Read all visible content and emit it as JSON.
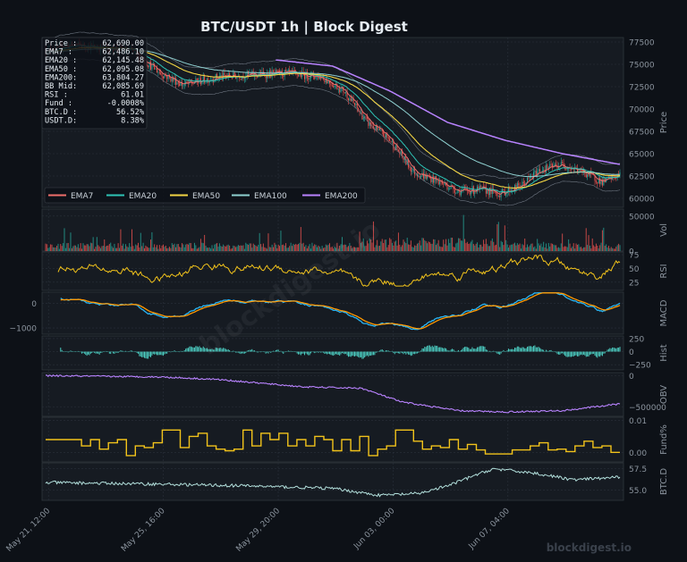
{
  "title": "BTC/USDT  1h  |  Block Digest",
  "watermark": "blockdigest.io",
  "diag_watermark": "blockdigest.io",
  "colors": {
    "bg": "#0d1117",
    "panel": "#161b22",
    "grid": "#2a313b",
    "text": "#c9d1d9",
    "axis": "#8b949e",
    "up": "#26a69a",
    "down": "#ef5350",
    "ema7": "#ef6f6c",
    "ema20": "#2ec4b6",
    "ema50": "#f2d544",
    "ema100": "#8fd1d1",
    "ema200": "#b983ff",
    "rsi": "#f2c31b",
    "macd": "#29b6f6",
    "signal": "#ff9800",
    "hist": "#4dd0c4",
    "obv": "#b983ff",
    "fund": "#f2c31b",
    "btcd": "#b2dfdb"
  },
  "info_box": [
    {
      "label": "Price :",
      "value": "62,690.00"
    },
    {
      "label": "EMA7  :",
      "value": "62,486.10"
    },
    {
      "label": "EMA20 :",
      "value": "62,145.48"
    },
    {
      "label": "EMA50 :",
      "value": "62,095.08"
    },
    {
      "label": "EMA200:",
      "value": "63,804.27"
    },
    {
      "label": "BB Mid:",
      "value": "62,085.69"
    },
    {
      "label": "RSI   :",
      "value": "61.01"
    },
    {
      "label": "Fund  :",
      "value": "-0.0008%"
    },
    {
      "label": "BTC.D :",
      "value": "56.52%"
    },
    {
      "label": "USDT.D:",
      "value": "8.38%"
    }
  ],
  "legend": [
    {
      "name": "EMA7",
      "color": "#ef6f6c"
    },
    {
      "name": "EMA20",
      "color": "#2ec4b6"
    },
    {
      "name": "EMA50",
      "color": "#f2d544"
    },
    {
      "name": "EMA100",
      "color": "#8fd1d1"
    },
    {
      "name": "EMA200",
      "color": "#b983ff"
    }
  ],
  "x_ticks": [
    "May 21, 12:00",
    "May 25, 16:00",
    "May 29, 20:00",
    "Jun 03, 00:00",
    "Jun 07, 04:00"
  ],
  "panel_labels": {
    "price": "Price",
    "vol": "Vol",
    "rsi": "RSI",
    "macd": "MACD",
    "hist": "Hist",
    "obv": "OBV",
    "fund": "Fund%",
    "btcd": "BTC.D"
  },
  "chart_data": {
    "type": "line",
    "x_range": [
      "May 21, 12:00",
      "Jun 10"
    ],
    "panels": {
      "price": {
        "ylim": [
          59000,
          78000
        ],
        "yticks": [
          60000,
          62500,
          65000,
          67500,
          70000,
          72500,
          75000,
          77500
        ],
        "close_keypoints": [
          [
            0,
            76700
          ],
          [
            0.05,
            77200
          ],
          [
            0.1,
            76800
          ],
          [
            0.15,
            76500
          ],
          [
            0.2,
            74000
          ],
          [
            0.24,
            72700
          ],
          [
            0.3,
            73600
          ],
          [
            0.35,
            73800
          ],
          [
            0.42,
            74000
          ],
          [
            0.48,
            73600
          ],
          [
            0.52,
            72000
          ],
          [
            0.56,
            68500
          ],
          [
            0.6,
            66500
          ],
          [
            0.64,
            63000
          ],
          [
            0.68,
            62000
          ],
          [
            0.72,
            60800
          ],
          [
            0.76,
            61000
          ],
          [
            0.79,
            60500
          ],
          [
            0.83,
            61500
          ],
          [
            0.86,
            63200
          ],
          [
            0.9,
            63800
          ],
          [
            0.94,
            62800
          ],
          [
            0.97,
            61800
          ],
          [
            1.0,
            62690
          ]
        ],
        "ema200_keypoints": [
          [
            0.4,
            75500
          ],
          [
            0.5,
            74800
          ],
          [
            0.6,
            72000
          ],
          [
            0.7,
            68500
          ],
          [
            0.8,
            66500
          ],
          [
            0.9,
            65000
          ],
          [
            1.0,
            63800
          ]
        ]
      },
      "vol": {
        "ylim": [
          0,
          60000
        ],
        "yticks": [
          0,
          50000
        ]
      },
      "rsi": {
        "ylim": [
          10,
          80
        ],
        "yticks": [
          25,
          50,
          75
        ],
        "last": 61.01
      },
      "macd": {
        "ylim": [
          -1250,
          450
        ],
        "yticks": [
          -1000,
          0
        ]
      },
      "hist": {
        "ylim": [
          -350,
          300
        ],
        "yticks": [
          -250,
          0,
          250
        ]
      },
      "obv": {
        "ylim": [
          -650000,
          50000
        ],
        "yticks": [
          -500000,
          0
        ]
      },
      "fund": {
        "ylim": [
          -0.003,
          0.011
        ],
        "yticks": [
          0.0,
          0.01
        ],
        "last": -0.0008
      },
      "btcd": {
        "ylim": [
          53.8,
          58.2
        ],
        "yticks": [
          55.0,
          57.5
        ],
        "last": 56.52
      }
    }
  }
}
